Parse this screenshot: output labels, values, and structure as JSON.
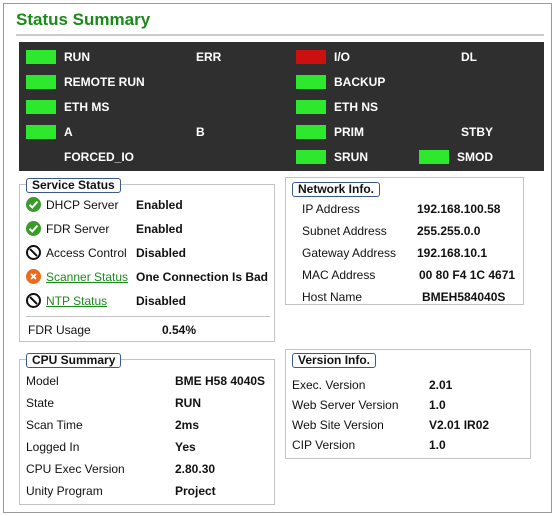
{
  "title": "Status Summary",
  "leds": {
    "run": {
      "label": "RUN",
      "color": "#2ee82e"
    },
    "err": {
      "label": "ERR"
    },
    "io": {
      "label": "I/O",
      "color": "#cc1010"
    },
    "dl": {
      "label": "DL"
    },
    "remote_run": {
      "label": "REMOTE RUN",
      "color": "#2ee82e"
    },
    "backup": {
      "label": "BACKUP",
      "color": "#2ee82e"
    },
    "eth_ms": {
      "label": "ETH MS",
      "color": "#2ee82e"
    },
    "eth_ns": {
      "label": "ETH NS",
      "color": "#2ee82e"
    },
    "a": {
      "label": "A",
      "color": "#2ee82e"
    },
    "b": {
      "label": "B"
    },
    "prim": {
      "label": "PRIM",
      "color": "#2ee82e"
    },
    "stby": {
      "label": "STBY"
    },
    "forced_io": {
      "label": "FORCED_IO"
    },
    "srun": {
      "label": "SRUN",
      "color": "#2ee82e"
    },
    "smod": {
      "label": "SMOD",
      "color": "#2ee82e"
    }
  },
  "service_status": {
    "legend": "Service Status",
    "items": [
      {
        "name": "DHCP Server",
        "value": "Enabled",
        "icon": "check-circle-icon"
      },
      {
        "name": "FDR Server",
        "value": "Enabled",
        "icon": "check-circle-icon"
      },
      {
        "name": "Access Control",
        "value": "Disabled",
        "icon": "disabled-circle-icon"
      },
      {
        "name": "Scanner Status",
        "value": "One Connection Is Bad",
        "icon": "error-x-circle-icon"
      },
      {
        "name": "NTP Status",
        "value": "Disabled",
        "icon": "disabled-circle-icon"
      }
    ],
    "fdr_usage_label": "FDR Usage",
    "fdr_usage_value": "0.54%"
  },
  "network_info": {
    "legend": "Network Info.",
    "items": [
      {
        "label": "IP Address",
        "value": "192.168.100.58"
      },
      {
        "label": "Subnet Address",
        "value": "255.255.0.0"
      },
      {
        "label": "Gateway Address",
        "value": "192.168.10.1"
      },
      {
        "label": "MAC Address",
        "value": "00 80 F4 1C 4671"
      },
      {
        "label": "Host Name",
        "value": "BMEH584040S"
      }
    ]
  },
  "cpu_summary": {
    "legend": "CPU Summary",
    "items": [
      {
        "label": "Model",
        "value": "BME H58 4040S"
      },
      {
        "label": "State",
        "value": "RUN"
      },
      {
        "label": "Scan Time",
        "value": "2ms"
      },
      {
        "label": "Logged In",
        "value": "Yes"
      },
      {
        "label": "CPU Exec Version",
        "value": "2.80.30"
      },
      {
        "label": "Unity Program",
        "value": "Project"
      }
    ]
  },
  "version_info": {
    "legend": "Version Info.",
    "items": [
      {
        "label": "Exec. Version",
        "value": "2.01"
      },
      {
        "label": "Web Server Version",
        "value": "1.0"
      },
      {
        "label": "Web Site Version",
        "value": "V2.01 IR02"
      },
      {
        "label": "CIP Version",
        "value": "1.0"
      }
    ]
  },
  "colors": {
    "title_green": "#1a8a1a",
    "led_green": "#2ee82e",
    "led_red": "#cc1010",
    "ok_green": "#3a9a2a",
    "error_orange": "#ee6a1a",
    "panel_bg": "#2f2f2f"
  }
}
